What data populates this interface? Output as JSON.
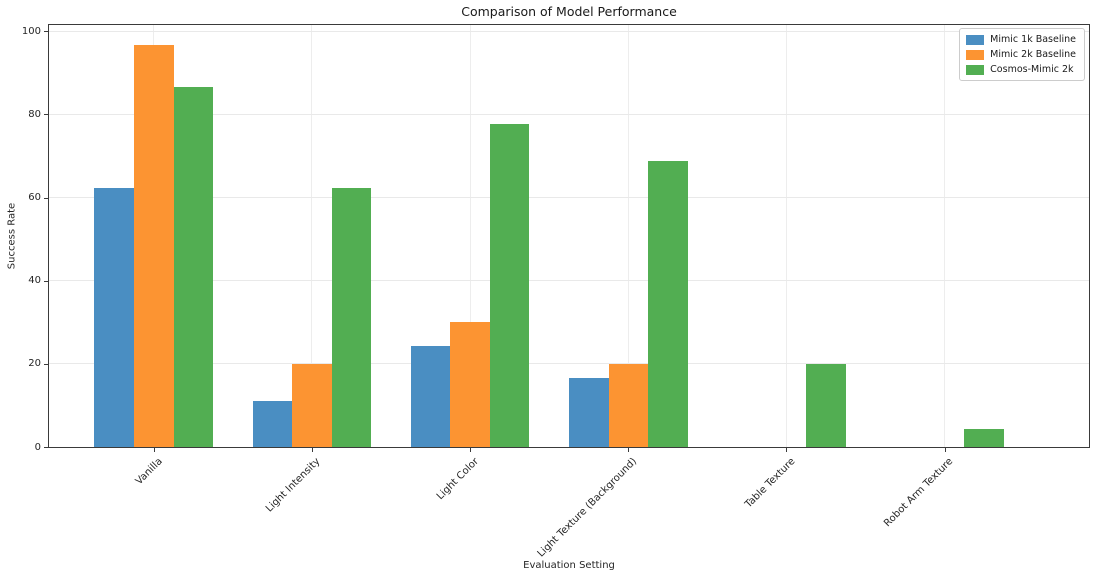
{
  "chart_data": {
    "type": "bar",
    "title": "Comparison of Model Performance",
    "xlabel": "Evaluation Setting",
    "ylabel": "Success Rate",
    "categories": [
      "Vanilla",
      "Light Intensity",
      "Light Color",
      "Light Texture (Background)",
      "Table Texture",
      "Robot Arm Texture"
    ],
    "series": [
      {
        "name": "Mimic 1k Baseline",
        "color": "#4a8ec2",
        "values": [
          62.2,
          11.1,
          24.4,
          16.7,
          0,
          0
        ]
      },
      {
        "name": "Mimic 2k Baseline",
        "color": "#fc9432",
        "values": [
          96.7,
          20.0,
          30.0,
          20.0,
          0,
          0
        ]
      },
      {
        "name": "Cosmos-Mimic 2k",
        "color": "#52ae52",
        "values": [
          86.7,
          62.2,
          77.8,
          68.9,
          20.0,
          4.4
        ]
      }
    ],
    "ylim": [
      0,
      100
    ],
    "yticks": [
      0,
      20,
      40,
      60,
      80,
      100
    ],
    "grid": true,
    "legend_position": "upper right",
    "bar_group_width": 0.75
  }
}
